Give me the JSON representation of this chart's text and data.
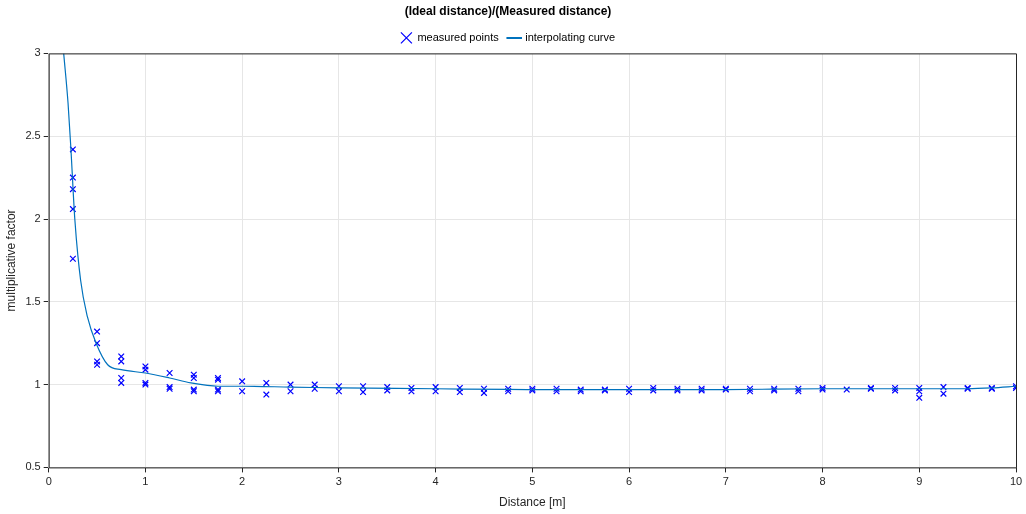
{
  "chart_data": {
    "type": "scatter",
    "title": "(Ideal distance)/(Measured distance)",
    "xlabel": "Distance [m]",
    "ylabel": "multiplicative factor",
    "xlim": [
      0,
      10
    ],
    "xticks": [
      0,
      1,
      2,
      3,
      4,
      5,
      6,
      7,
      8,
      9,
      10
    ],
    "ylim": [
      0.5,
      3
    ],
    "yticks": [
      0.5,
      1,
      1.5,
      2,
      2.5,
      3
    ],
    "grid": true,
    "legend": "top",
    "series": [
      {
        "name": "measured points",
        "marker": "cross",
        "color": "#0000ff",
        "x": [
          0.25,
          0.25,
          0.25,
          0.25,
          0.25,
          0.5,
          0.5,
          0.5,
          0.5,
          0.75,
          0.75,
          0.75,
          0.75,
          1,
          1,
          1,
          1,
          1.25,
          1.25,
          1.25,
          1.5,
          1.5,
          1.5,
          1.5,
          1.75,
          1.75,
          1.75,
          1.75,
          2,
          2,
          2.25,
          2.25,
          2.5,
          2.5,
          2.75,
          2.75,
          3,
          3,
          3.25,
          3.25,
          3.5,
          3.5,
          3.75,
          3.75,
          4,
          4,
          4.25,
          4.25,
          4.5,
          4.5,
          4.75,
          4.75,
          5,
          5,
          5.25,
          5.25,
          5.5,
          5.5,
          5.75,
          5.75,
          6,
          6,
          6.25,
          6.25,
          6.5,
          6.5,
          6.75,
          6.75,
          7,
          7,
          7.25,
          7.25,
          7.5,
          7.5,
          7.75,
          7.75,
          8,
          8,
          8.25,
          8.5,
          8.5,
          8.75,
          8.75,
          9,
          9,
          9,
          9.25,
          9.25,
          9.5,
          9.5,
          9.75,
          9.75,
          10,
          10
        ],
        "values": [
          2.42,
          2.25,
          2.18,
          2.06,
          1.76,
          1.32,
          1.25,
          1.14,
          1.12,
          1.17,
          1.14,
          1.04,
          1.01,
          1.11,
          1.09,
          1.01,
          1.0,
          1.07,
          0.985,
          0.975,
          1.06,
          1.04,
          0.97,
          0.96,
          1.04,
          1.03,
          0.97,
          0.96,
          1.02,
          0.96,
          1.01,
          0.94,
          1.0,
          0.96,
          1.0,
          0.975,
          0.99,
          0.96,
          0.99,
          0.955,
          0.985,
          0.965,
          0.98,
          0.96,
          0.985,
          0.96,
          0.98,
          0.955,
          0.975,
          0.95,
          0.975,
          0.96,
          0.975,
          0.965,
          0.975,
          0.96,
          0.97,
          0.96,
          0.97,
          0.965,
          0.975,
          0.955,
          0.98,
          0.965,
          0.975,
          0.965,
          0.975,
          0.965,
          0.975,
          0.97,
          0.975,
          0.96,
          0.975,
          0.965,
          0.975,
          0.96,
          0.98,
          0.97,
          0.97,
          0.98,
          0.975,
          0.98,
          0.965,
          0.98,
          0.96,
          0.92,
          0.985,
          0.945,
          0.98,
          0.975,
          0.98,
          0.975,
          0.99,
          0.98
        ]
      },
      {
        "name": "interpolating curve",
        "type": "line",
        "marker": "none",
        "color": "#0072bd",
        "x": [
          0.155,
          0.2,
          0.23,
          0.27,
          0.33,
          0.4,
          0.49,
          0.61,
          0.75,
          1,
          1.25,
          1.47,
          1.75,
          2,
          2.5,
          3,
          4,
          5,
          6,
          7,
          8,
          9,
          9.5,
          9.75,
          10
        ],
        "values": [
          3,
          2.7,
          2.42,
          2.0,
          1.63,
          1.41,
          1.25,
          1.12,
          1.09,
          1.07,
          1.04,
          1.01,
          0.99,
          0.99,
          0.985,
          0.98,
          0.975,
          0.97,
          0.97,
          0.97,
          0.975,
          0.975,
          0.975,
          0.98,
          0.99
        ]
      }
    ]
  }
}
